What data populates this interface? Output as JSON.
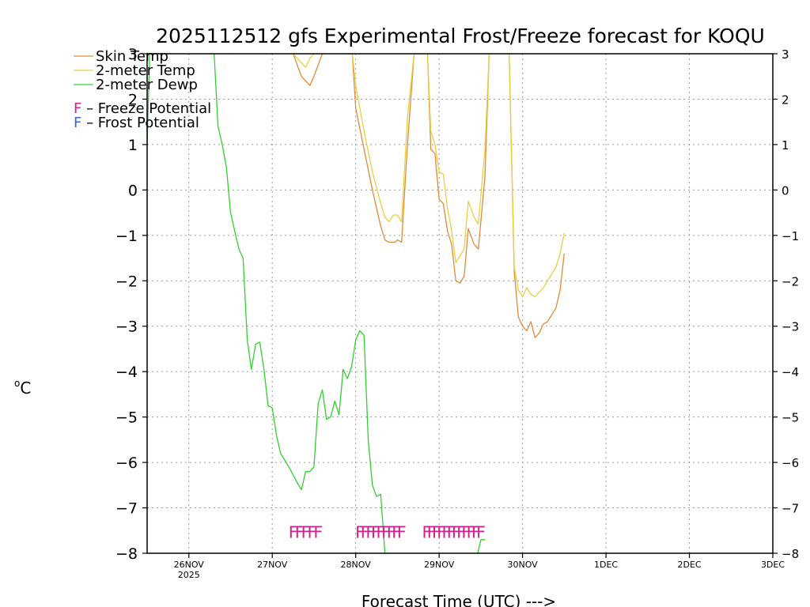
{
  "chart_data": {
    "type": "line",
    "title": "2025112512 gfs Experimental Frost/Freeze forecast for KOQU",
    "xlabel": "Forecast Time (UTC) --->",
    "ylabel": "°C",
    "ylim": [
      -8,
      3
    ],
    "xlim": [
      -0.5,
      7
    ],
    "y_ticks": [
      -8,
      -7,
      -6,
      -5,
      -4,
      -3,
      -2,
      -1,
      0,
      1,
      2,
      3
    ],
    "x_ticks": [
      {
        "x": 0,
        "label": "26NOV",
        "sublabel": "2025"
      },
      {
        "x": 1,
        "label": "27NOV",
        "sublabel": ""
      },
      {
        "x": 2,
        "label": "28NOV",
        "sublabel": ""
      },
      {
        "x": 3,
        "label": "29NOV",
        "sublabel": ""
      },
      {
        "x": 4,
        "label": "30NOV",
        "sublabel": ""
      },
      {
        "x": 5,
        "label": "1DEC",
        "sublabel": ""
      },
      {
        "x": 6,
        "label": "2DEC",
        "sublabel": ""
      },
      {
        "x": 7,
        "label": "3DEC",
        "sublabel": ""
      }
    ],
    "grid": true,
    "legend": [
      {
        "label": "Skin Temp",
        "color": "#e08a3a"
      },
      {
        "label": "2-meter Temp",
        "color": "#e8d040"
      },
      {
        "label": "2-meter Dewp",
        "color": "#30d030"
      }
    ],
    "potential_legend": [
      {
        "symbol": "F",
        "label": " – Freeze Potential",
        "color": "#d0208c"
      },
      {
        "symbol": "F",
        "label": " – Frost Potential",
        "color": "#4060e0"
      }
    ],
    "series": [
      {
        "name": "Skin Temp",
        "color": "#e08a3a",
        "x": [
          0.27,
          0.32,
          0.42,
          0.48,
          0.52,
          0.62,
          0.75,
          0.95,
          1.25,
          1.35,
          1.4,
          1.45,
          1.5,
          1.6,
          1.8,
          1.88,
          1.96,
          2.0,
          2.1,
          2.2,
          2.3,
          2.35,
          2.4,
          2.47,
          2.5,
          2.55,
          2.62,
          2.7,
          2.78,
          2.86,
          2.9,
          2.95,
          3.0,
          3.05,
          3.1,
          3.15,
          3.2,
          3.25,
          3.3,
          3.35,
          3.42,
          3.47,
          3.55,
          3.6,
          3.65,
          3.72,
          3.78,
          3.84,
          3.9,
          3.95,
          4.0,
          4.05,
          4.1,
          4.15,
          4.2,
          4.25,
          4.3,
          4.35,
          4.4,
          4.45,
          4.5
        ],
        "y": [
          3.0,
          3.05,
          3.1,
          3.05,
          3.0,
          3.1,
          3.1,
          3.1,
          3.0,
          2.5,
          2.4,
          2.3,
          2.5,
          3.0,
          3.05,
          3.0,
          3.0,
          1.8,
          0.9,
          0.0,
          -0.8,
          -1.1,
          -1.15,
          -1.15,
          -1.1,
          -1.15,
          1.0,
          3.0,
          3.1,
          3.05,
          0.9,
          0.8,
          -0.2,
          -0.3,
          -0.9,
          -1.2,
          -2.0,
          -2.05,
          -1.9,
          -0.85,
          -1.2,
          -1.3,
          0.3,
          3.0,
          3.1,
          3.1,
          3.0,
          3.0,
          -1.8,
          -2.8,
          -3.0,
          -3.1,
          -2.9,
          -3.25,
          -3.15,
          -2.95,
          -2.9,
          -2.75,
          -2.6,
          -2.2,
          -1.4
        ]
      },
      {
        "name": "2-meter Temp",
        "color": "#e8d040",
        "x": [
          0.27,
          0.4,
          0.6,
          0.8,
          1.0,
          1.25,
          1.35,
          1.4,
          1.45,
          1.5,
          1.6,
          1.8,
          1.88,
          1.96,
          2.0,
          2.1,
          2.2,
          2.3,
          2.35,
          2.4,
          2.45,
          2.5,
          2.55,
          2.62,
          2.7,
          2.78,
          2.86,
          2.9,
          2.95,
          3.0,
          3.05,
          3.1,
          3.15,
          3.2,
          3.25,
          3.3,
          3.35,
          3.42,
          3.47,
          3.55,
          3.6,
          3.65,
          3.72,
          3.78,
          3.84,
          3.9,
          3.95,
          4.0,
          4.05,
          4.1,
          4.15,
          4.2,
          4.25,
          4.3,
          4.35,
          4.4,
          4.45,
          4.5
        ],
        "y": [
          3.1,
          3.1,
          3.1,
          3.1,
          3.1,
          3.0,
          2.8,
          2.7,
          2.9,
          3.0,
          3.05,
          3.05,
          3.0,
          3.0,
          2.3,
          1.3,
          0.4,
          -0.3,
          -0.6,
          -0.7,
          -0.55,
          -0.55,
          -0.7,
          1.6,
          3.0,
          3.05,
          3.05,
          1.3,
          1.0,
          0.4,
          0.35,
          -0.4,
          -0.9,
          -1.6,
          -1.45,
          -1.3,
          -0.25,
          -0.6,
          -0.75,
          0.9,
          3.0,
          3.05,
          3.05,
          3.0,
          3.0,
          -1.7,
          -2.2,
          -2.35,
          -2.15,
          -2.3,
          -2.35,
          -2.25,
          -2.15,
          -2.0,
          -1.85,
          -1.7,
          -1.4,
          -0.95
        ]
      },
      {
        "name": "2-meter Dewp",
        "color": "#30d030",
        "x": [
          -0.5,
          -0.47,
          -0.45,
          -0.4,
          0.3,
          0.35,
          0.4,
          0.45,
          0.5,
          0.55,
          0.6,
          0.65,
          0.7,
          0.75,
          0.8,
          0.85,
          0.9,
          0.95,
          1.0,
          1.05,
          1.1,
          1.2,
          1.3,
          1.35,
          1.4,
          1.45,
          1.5,
          1.55,
          1.6,
          1.65,
          1.7,
          1.75,
          1.8,
          1.85,
          1.9,
          1.95,
          2.0,
          2.05,
          2.1,
          2.15,
          2.2,
          2.25,
          2.3,
          2.35,
          2.4,
          2.45,
          2.5,
          2.55,
          2.6,
          2.65,
          2.7,
          2.75,
          2.8,
          2.85,
          2.9,
          2.95,
          3.0,
          3.05,
          3.1,
          3.15,
          3.2,
          3.25,
          3.3,
          3.35,
          3.4,
          3.45,
          3.5,
          3.55
        ],
        "y": [
          1.0,
          3.0,
          3.1,
          3.1,
          3.1,
          1.4,
          1.0,
          0.5,
          -0.5,
          -0.9,
          -1.3,
          -1.5,
          -3.3,
          -3.95,
          -3.4,
          -3.35,
          -3.95,
          -4.75,
          -4.8,
          -5.4,
          -5.8,
          -6.1,
          -6.45,
          -6.6,
          -6.2,
          -6.2,
          -6.1,
          -4.7,
          -4.4,
          -5.05,
          -5.0,
          -4.65,
          -4.95,
          -3.95,
          -4.15,
          -3.9,
          -3.3,
          -3.1,
          -3.2,
          -5.5,
          -6.5,
          -6.75,
          -6.7,
          -8.0,
          -8.1,
          -8.1,
          -8.1,
          -8.1,
          -8.1,
          -8.1,
          -8.1,
          -8.1,
          -8.1,
          -8.1,
          -8.1,
          -8.1,
          -8.1,
          -8.1,
          -8.1,
          -8.1,
          -8.1,
          -8.1,
          -8.1,
          -8.1,
          -8.1,
          -8.1,
          -7.7,
          -7.7
        ]
      }
    ],
    "freeze_potential": [
      {
        "start": 1.25,
        "end": 1.55,
        "count": 5
      },
      {
        "start": 2.05,
        "end": 2.55,
        "count": 9
      },
      {
        "start": 2.85,
        "end": 3.5,
        "count": 12
      }
    ],
    "freeze_level": -7.5
  }
}
